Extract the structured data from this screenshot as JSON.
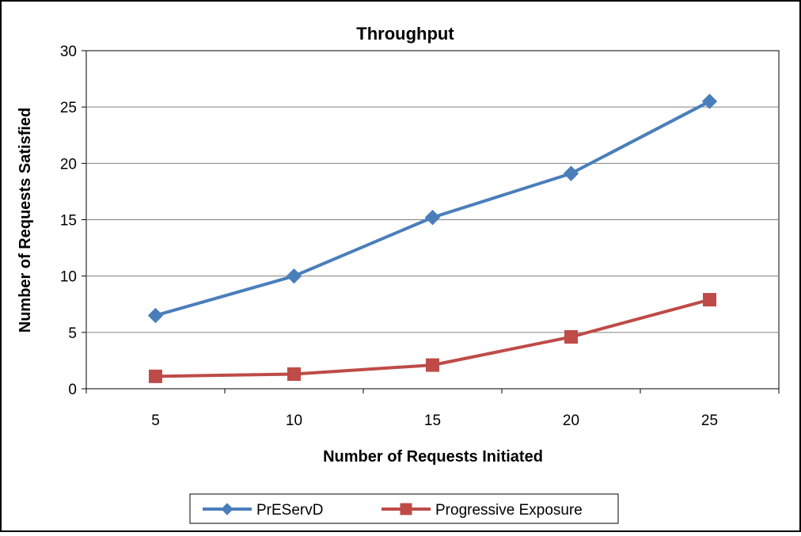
{
  "chart_data": {
    "type": "line",
    "title": "Throughput",
    "xlabel": "Number of Requests Initiated",
    "ylabel": "Number of Requests Satisfied",
    "categories": [
      "5",
      "10",
      "15",
      "20",
      "25"
    ],
    "ylim": [
      0,
      30
    ],
    "yticks": [
      "0",
      "5",
      "10",
      "15",
      "20",
      "25",
      "30"
    ],
    "grid": true,
    "legend_position": "bottom",
    "series": [
      {
        "name": "PrEServD",
        "values": [
          6.5,
          10,
          15.2,
          19.1,
          25.5
        ],
        "color": "#4a7ebb",
        "marker": "diamond"
      },
      {
        "name": "Progressive Exposure",
        "values": [
          1.1,
          1.3,
          2.1,
          4.6,
          7.9
        ],
        "color": "#be4b48",
        "marker": "square"
      }
    ]
  }
}
